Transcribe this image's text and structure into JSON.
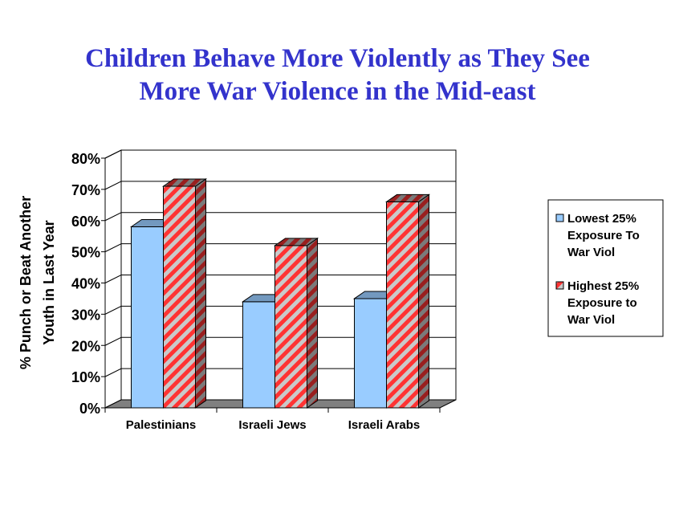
{
  "slide": {
    "title_line_1": "Children Behave More Violently as They See",
    "title_line_2": "More War Violence in the Mid-east"
  },
  "chart_data": {
    "type": "bar",
    "title": "Children Behave More Violently as They See More War Violence in the Mid-east",
    "categories": [
      "Palestinians",
      "Israeli Jews",
      "Israeli Arabs"
    ],
    "series": [
      {
        "name": "Lowest 25% Exposure To War Viol",
        "values": [
          58,
          34,
          35
        ],
        "color": "#99ccff",
        "pattern": "solid"
      },
      {
        "name": "Highest 25% Exposure to War Viol",
        "values": [
          71,
          52,
          66
        ],
        "color": "#ff3333",
        "pattern": "diagonal-stripes"
      }
    ],
    "ylabel_line_1": "% Punch or Beat Another",
    "ylabel_line_2": "Youth in Last Year",
    "ylim": [
      0,
      80
    ],
    "y_ticks": [
      0,
      10,
      20,
      30,
      40,
      50,
      60,
      70,
      80
    ],
    "y_tick_labels": [
      "0%",
      "10%",
      "20%",
      "30%",
      "40%",
      "50%",
      "60%",
      "70%",
      "80%"
    ],
    "legend_position": "right",
    "legend_lines": [
      [
        "Lowest 25%",
        "Exposure To",
        "War Viol"
      ],
      [
        "Highest 25%",
        "Exposure to",
        "War Viol"
      ]
    ],
    "gridlines": true,
    "style": "3d-clustered-column"
  }
}
